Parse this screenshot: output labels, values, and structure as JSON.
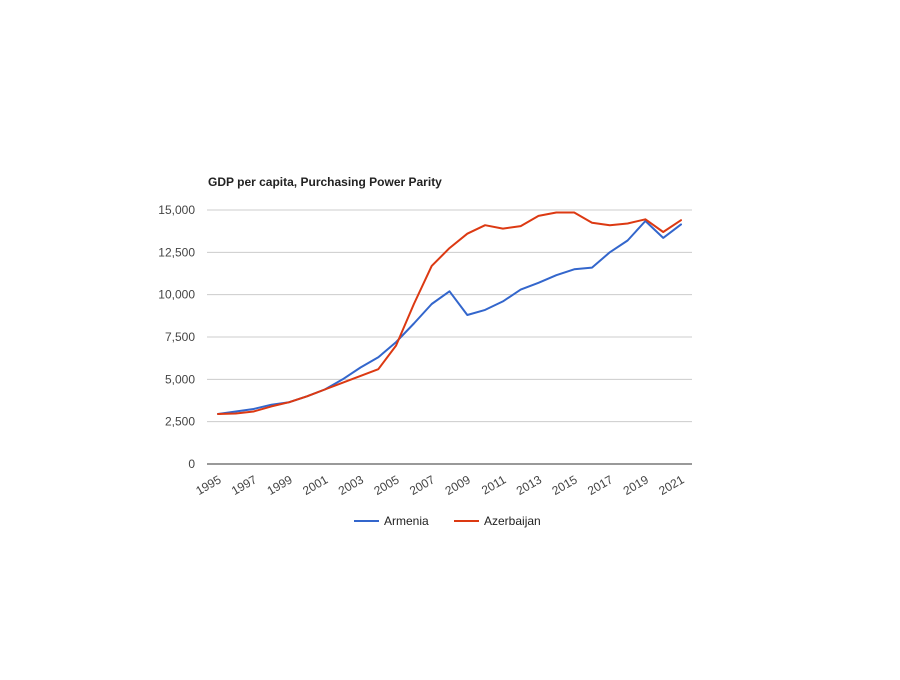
{
  "chart_data": {
    "type": "line",
    "title": "GDP per capita, Purchasing Power Parity",
    "xlabel": "",
    "ylabel": "",
    "x": [
      1995,
      1996,
      1997,
      1998,
      1999,
      2000,
      2001,
      2002,
      2003,
      2004,
      2005,
      2006,
      2007,
      2008,
      2009,
      2010,
      2011,
      2012,
      2013,
      2014,
      2015,
      2016,
      2017,
      2018,
      2019,
      2020,
      2021
    ],
    "x_tick_labels": [
      "1995",
      "1997",
      "1999",
      "2001",
      "2003",
      "2005",
      "2007",
      "2009",
      "2011",
      "2013",
      "2015",
      "2017",
      "2019",
      "2021"
    ],
    "ylim": [
      0,
      15000
    ],
    "y_ticks": [
      0,
      2500,
      5000,
      7500,
      10000,
      12500,
      15000
    ],
    "y_tick_labels": [
      "0",
      "2,500",
      "5,000",
      "7,500",
      "10,000",
      "12,500",
      "15,000"
    ],
    "grid": true,
    "legend_position": "bottom",
    "series": [
      {
        "name": "Armenia",
        "color": "#3366cc",
        "values": [
          2950,
          3100,
          3250,
          3500,
          3650,
          4000,
          4400,
          5000,
          5700,
          6300,
          7200,
          8300,
          9450,
          10200,
          8800,
          9100,
          9600,
          10300,
          10700,
          11150,
          11500,
          11600,
          12500,
          13200,
          14350,
          13350,
          14150
        ]
      },
      {
        "name": "Azerbaijan",
        "color": "#dc3912",
        "values": [
          2950,
          2980,
          3100,
          3400,
          3650,
          4000,
          4400,
          4800,
          5200,
          5600,
          7000,
          9450,
          11700,
          12750,
          13600,
          14100,
          13900,
          14050,
          14650,
          14850,
          14850,
          14250,
          14100,
          14200,
          14450,
          13700,
          14400
        ]
      }
    ]
  }
}
